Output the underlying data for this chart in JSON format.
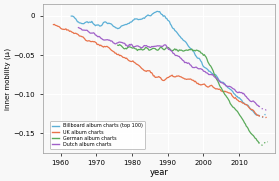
{
  "title": "",
  "xlabel": "year",
  "ylabel": "inner mobility (μᵢ)",
  "xlim": [
    1955,
    2020
  ],
  "ylim": [
    -0.175,
    0.015
  ],
  "yticks": [
    0,
    -0.05,
    -0.1,
    -0.15
  ],
  "ytick_labels": [
    "0",
    "−0.05",
    "−0.10",
    "−0.15"
  ],
  "xticks": [
    1960,
    1970,
    1980,
    1990,
    2000,
    2010
  ],
  "legend_labels": [
    "Billboard album charts (top 100)",
    "UK album charts",
    "German album charts",
    "Dutch album charts"
  ],
  "colors": {
    "billboard": "#5bafd6",
    "uk": "#e8724a",
    "german": "#5aaa5a",
    "dutch": "#a060c8"
  },
  "background": "#f8f8f8",
  "grid_color": "#ffffff"
}
